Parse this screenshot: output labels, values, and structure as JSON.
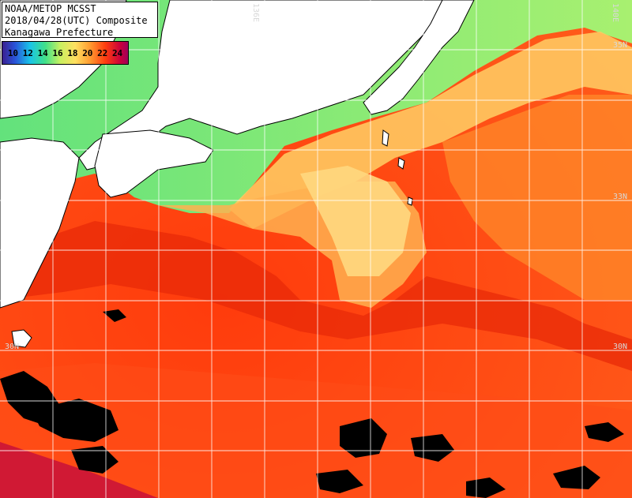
{
  "title": {
    "line1": "NOAA/METOP MCSST",
    "line2": "2018/04/28(UTC) Composite",
    "line3": "Kanagawa Prefecture"
  },
  "scale": {
    "labels": [
      "10",
      "12",
      "14",
      "16",
      "18",
      "20",
      "22",
      "24"
    ]
  },
  "grid_labels": {
    "lon_136": "136E",
    "lon_140": "140E",
    "lat_35_right": "35N",
    "lat_33_right": "33N",
    "lat_30_left": "30N",
    "lat_30_right": "30N"
  },
  "colors": {
    "land": "#ffffff",
    "cloud": "#000000",
    "grid": "#ffffff"
  }
}
